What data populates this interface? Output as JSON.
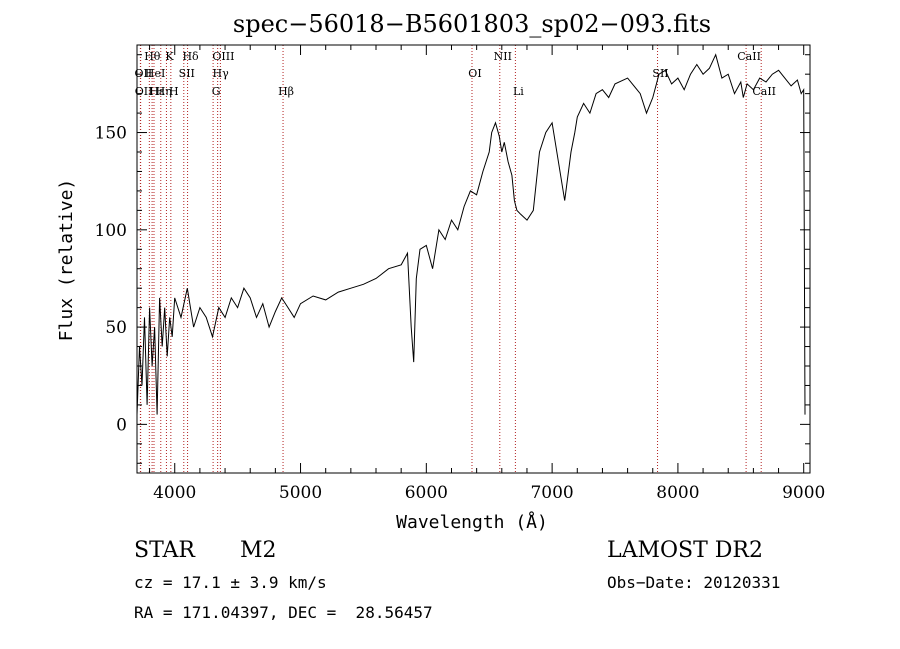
{
  "chart_data": {
    "type": "line",
    "title": "spec−56018−B5601803_sp02−093.fits",
    "xlabel": "Wavelength (Å)",
    "ylabel": "Flux (relative)",
    "xlim": [
      3700,
      9050
    ],
    "ylim": [
      -25,
      195
    ],
    "x_ticks": [
      4000,
      5000,
      6000,
      7000,
      8000,
      9000
    ],
    "y_ticks": [
      0,
      50,
      100,
      150
    ],
    "grid": false,
    "legend": "none",
    "line_color": "#000000",
    "marker_color": "#b22222",
    "series": [
      {
        "x": [
          3700,
          3720,
          3740,
          3760,
          3780,
          3800,
          3820,
          3840,
          3860,
          3880,
          3900,
          3920,
          3940,
          3960,
          3980,
          4000,
          4050,
          4100,
          4150,
          4200,
          4250,
          4300,
          4350,
          4400,
          4450,
          4500,
          4550,
          4600,
          4650,
          4700,
          4750,
          4800,
          4850,
          4900,
          4950,
          5000,
          5100,
          5200,
          5300,
          5400,
          5500,
          5600,
          5700,
          5800,
          5850,
          5880,
          5900,
          5920,
          5950,
          6000,
          6050,
          6100,
          6150,
          6200,
          6250,
          6300,
          6350,
          6400,
          6450,
          6500,
          6520,
          6550,
          6580,
          6600,
          6620,
          6650,
          6680,
          6700,
          6720,
          6750,
          6800,
          6850,
          6900,
          6950,
          7000,
          7050,
          7100,
          7150,
          7180,
          7200,
          7250,
          7300,
          7350,
          7400,
          7450,
          7500,
          7600,
          7700,
          7750,
          7800,
          7850,
          7900,
          7950,
          8000,
          8050,
          8100,
          8150,
          8200,
          8250,
          8300,
          8350,
          8400,
          8450,
          8500,
          8520,
          8550,
          8600,
          8650,
          8700,
          8750,
          8800,
          8850,
          8900,
          8950,
          8980,
          9000,
          9010
        ],
        "y": [
          5,
          40,
          20,
          55,
          10,
          60,
          30,
          50,
          5,
          65,
          40,
          60,
          35,
          55,
          45,
          65,
          55,
          70,
          50,
          60,
          55,
          45,
          60,
          55,
          65,
          60,
          70,
          65,
          55,
          62,
          50,
          58,
          65,
          60,
          55,
          62,
          66,
          64,
          68,
          70,
          72,
          75,
          80,
          82,
          88,
          50,
          32,
          75,
          90,
          92,
          80,
          100,
          95,
          105,
          100,
          112,
          120,
          118,
          130,
          140,
          150,
          155,
          148,
          140,
          145,
          135,
          128,
          115,
          110,
          108,
          105,
          110,
          140,
          150,
          155,
          135,
          115,
          140,
          150,
          158,
          165,
          160,
          170,
          172,
          168,
          175,
          178,
          170,
          160,
          168,
          180,
          182,
          175,
          178,
          172,
          180,
          185,
          180,
          183,
          190,
          178,
          180,
          170,
          176,
          168,
          175,
          172,
          178,
          176,
          180,
          182,
          178,
          174,
          177,
          170,
          172,
          5
        ]
      }
    ],
    "line_markers": [
      {
        "label": "Hθ",
        "x": 3798
      },
      {
        "label": "OII",
        "x": 3727
      },
      {
        "label": "OII",
        "x": 3729
      },
      {
        "label": "HeI",
        "x": 3820
      },
      {
        "label": "Hε",
        "x": 3835
      },
      {
        "label": "Hη",
        "x": 3889
      },
      {
        "label": "K",
        "x": 3934
      },
      {
        "label": "H",
        "x": 3969
      },
      {
        "label": "SII",
        "x": 4072
      },
      {
        "label": "Hδ",
        "x": 4102
      },
      {
        "label": "OIII",
        "x": 4363
      },
      {
        "label": "Hγ",
        "x": 4341
      },
      {
        "label": "G",
        "x": 4305
      },
      {
        "label": "Hβ",
        "x": 4861
      },
      {
        "label": "OI",
        "x": 6363
      },
      {
        "label": "NII",
        "x": 6584
      },
      {
        "label": "Li",
        "x": 6708
      },
      {
        "label": "SII",
        "x": 7838
      },
      {
        "label": "CaII",
        "x": 8542
      },
      {
        "label": "CaII",
        "x": 8662
      }
    ]
  },
  "info": {
    "object_class": "STAR",
    "subclass": "M2",
    "survey": "LAMOST DR2",
    "cz": "cz = 17.1 ± 3.9 km/s",
    "obs_date": "Obs−Date: 20120331",
    "coords": "RA = 171.04397, DEC =  28.56457"
  }
}
